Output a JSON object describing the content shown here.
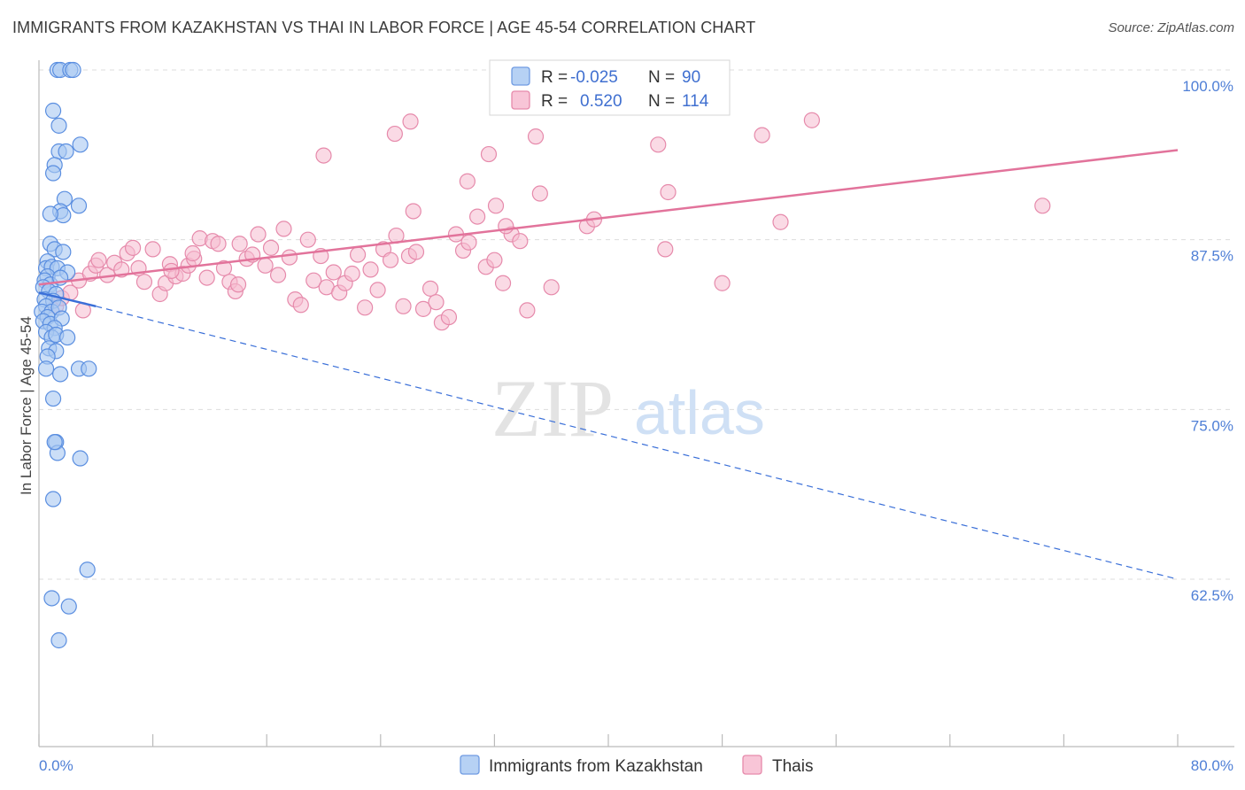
{
  "title": "IMMIGRANTS FROM KAZAKHSTAN VS THAI IN LABOR FORCE | AGE 45-54 CORRELATION CHART",
  "source": "Source: ZipAtlas.com",
  "watermark": {
    "zip": "ZIP",
    "atlas": "atlas"
  },
  "colors": {
    "blue_fill": "#a9c8f2",
    "blue_stroke": "#5a8ee0",
    "blue_line": "#3a6fd8",
    "pink_fill": "#f6bcd0",
    "pink_stroke": "#e68aab",
    "pink_line": "#e2739b",
    "tick_text": "#4f7fd6",
    "grid": "#dddddd"
  },
  "legend": {
    "rows": [
      {
        "r_label": "R =",
        "r_value": "-0.025",
        "n_label": "N =",
        "n_value": "90"
      },
      {
        "r_label": "R =",
        "r_value": "0.520",
        "n_label": "N =",
        "n_value": "114"
      }
    ]
  },
  "bottom_legend": {
    "series1": "Immigrants from Kazakhstan",
    "series2": "Thais"
  },
  "chart_data": {
    "type": "scatter",
    "title": "IMMIGRANTS FROM KAZAKHSTAN VS THAI IN LABOR FORCE | AGE 45-54 CORRELATION CHART",
    "ylabel": "In Labor Force | Age 45-54",
    "xlim": [
      0,
      80
    ],
    "ylim": [
      50,
      101
    ],
    "y_ticks": [
      62.5,
      75.0,
      87.5,
      100.0
    ],
    "y_tick_labels": [
      "62.5%",
      "75.0%",
      "87.5%",
      "100.0%"
    ],
    "x_tick_labels": [
      "0.0%",
      "80.0%"
    ],
    "grid": true,
    "legend_position": "top-center",
    "series": [
      {
        "name": "Immigrants from Kazakhstan",
        "r": -0.025,
        "n": 90,
        "trend_solid": [
          [
            0.0,
            83.6
          ],
          [
            4.0,
            82.6
          ]
        ],
        "trend_dashed": [
          [
            4.0,
            82.6
          ],
          [
            80.0,
            62.5
          ]
        ],
        "points": [
          [
            1.3,
            100.0
          ],
          [
            1.5,
            100.0
          ],
          [
            2.2,
            100.0
          ],
          [
            2.4,
            100.0
          ],
          [
            1.0,
            97.0
          ],
          [
            1.4,
            95.9
          ],
          [
            2.9,
            94.5
          ],
          [
            1.4,
            94.0
          ],
          [
            1.9,
            94.0
          ],
          [
            1.1,
            93.0
          ],
          [
            1.0,
            92.4
          ],
          [
            1.8,
            90.5
          ],
          [
            2.8,
            90.0
          ],
          [
            1.5,
            89.6
          ],
          [
            1.7,
            89.3
          ],
          [
            0.8,
            89.4
          ],
          [
            0.8,
            87.2
          ],
          [
            1.1,
            86.8
          ],
          [
            1.7,
            86.6
          ],
          [
            0.6,
            85.9
          ],
          [
            0.5,
            85.4
          ],
          [
            0.9,
            85.5
          ],
          [
            1.3,
            85.4
          ],
          [
            2.0,
            85.1
          ],
          [
            0.6,
            84.8
          ],
          [
            0.4,
            84.5
          ],
          [
            0.8,
            84.2
          ],
          [
            1.5,
            84.7
          ],
          [
            0.3,
            84.0
          ],
          [
            0.7,
            83.7
          ],
          [
            1.2,
            83.5
          ],
          [
            0.4,
            83.1
          ],
          [
            1.0,
            83.0
          ],
          [
            0.5,
            82.6
          ],
          [
            0.2,
            82.2
          ],
          [
            0.9,
            82.2
          ],
          [
            1.4,
            82.5
          ],
          [
            0.6,
            81.8
          ],
          [
            0.3,
            81.5
          ],
          [
            0.8,
            81.3
          ],
          [
            1.6,
            81.7
          ],
          [
            1.1,
            81.0
          ],
          [
            0.5,
            80.7
          ],
          [
            0.9,
            80.3
          ],
          [
            1.2,
            80.5
          ],
          [
            2.0,
            80.3
          ],
          [
            0.7,
            79.5
          ],
          [
            1.2,
            79.3
          ],
          [
            0.6,
            78.9
          ],
          [
            0.5,
            78.0
          ],
          [
            2.8,
            78.0
          ],
          [
            3.5,
            78.0
          ],
          [
            1.5,
            77.6
          ],
          [
            1.0,
            75.8
          ],
          [
            1.2,
            72.6
          ],
          [
            1.3,
            71.8
          ],
          [
            1.1,
            72.6
          ],
          [
            2.9,
            71.4
          ],
          [
            1.0,
            68.4
          ],
          [
            3.4,
            63.2
          ],
          [
            0.9,
            61.1
          ],
          [
            2.1,
            60.5
          ],
          [
            1.4,
            58.0
          ]
        ]
      },
      {
        "name": "Thais",
        "r": 0.52,
        "n": 114,
        "trend_solid": [
          [
            0.0,
            84.2
          ],
          [
            80.0,
            94.1
          ]
        ],
        "points": [
          [
            1.2,
            82.6
          ],
          [
            1.6,
            83.2
          ],
          [
            2.2,
            83.6
          ],
          [
            2.8,
            84.5
          ],
          [
            3.1,
            82.3
          ],
          [
            3.6,
            85.0
          ],
          [
            4.0,
            85.6
          ],
          [
            4.2,
            86.0
          ],
          [
            4.8,
            84.9
          ],
          [
            5.3,
            85.8
          ],
          [
            5.8,
            85.3
          ],
          [
            6.2,
            86.5
          ],
          [
            6.6,
            86.9
          ],
          [
            7.0,
            85.4
          ],
          [
            7.4,
            84.4
          ],
          [
            8.0,
            86.8
          ],
          [
            8.5,
            83.5
          ],
          [
            8.9,
            84.3
          ],
          [
            9.2,
            85.7
          ],
          [
            9.6,
            84.8
          ],
          [
            10.1,
            85.0
          ],
          [
            10.5,
            85.6
          ],
          [
            10.9,
            86.1
          ],
          [
            11.3,
            87.6
          ],
          [
            11.8,
            84.7
          ],
          [
            12.2,
            87.4
          ],
          [
            12.6,
            87.2
          ],
          [
            13.0,
            85.4
          ],
          [
            13.4,
            84.4
          ],
          [
            13.8,
            83.7
          ],
          [
            14.1,
            87.2
          ],
          [
            14.6,
            86.1
          ],
          [
            15.0,
            86.4
          ],
          [
            15.4,
            87.9
          ],
          [
            15.9,
            85.6
          ],
          [
            16.3,
            86.9
          ],
          [
            16.8,
            84.9
          ],
          [
            17.2,
            88.3
          ],
          [
            17.6,
            86.2
          ],
          [
            18.0,
            83.1
          ],
          [
            18.4,
            82.7
          ],
          [
            18.9,
            87.5
          ],
          [
            19.3,
            84.5
          ],
          [
            19.8,
            86.3
          ],
          [
            20.2,
            84.0
          ],
          [
            20.7,
            85.1
          ],
          [
            21.1,
            83.6
          ],
          [
            21.5,
            84.3
          ],
          [
            22.0,
            85.0
          ],
          [
            22.4,
            86.4
          ],
          [
            22.9,
            82.5
          ],
          [
            23.3,
            85.3
          ],
          [
            23.8,
            83.8
          ],
          [
            24.2,
            86.8
          ],
          [
            24.7,
            86.0
          ],
          [
            25.1,
            87.8
          ],
          [
            25.6,
            82.6
          ],
          [
            26.0,
            86.3
          ],
          [
            26.5,
            86.6
          ],
          [
            27.0,
            82.4
          ],
          [
            27.5,
            83.9
          ],
          [
            27.9,
            82.9
          ],
          [
            28.3,
            81.4
          ],
          [
            28.8,
            81.8
          ],
          [
            29.3,
            87.9
          ],
          [
            29.8,
            86.7
          ],
          [
            30.2,
            87.3
          ],
          [
            30.8,
            89.2
          ],
          [
            31.4,
            85.5
          ],
          [
            32.0,
            86.0
          ],
          [
            32.6,
            84.3
          ],
          [
            33.2,
            87.9
          ],
          [
            33.8,
            87.4
          ],
          [
            34.3,
            82.3
          ],
          [
            36.0,
            84.0
          ],
          [
            38.5,
            88.5
          ],
          [
            39.0,
            89.0
          ],
          [
            9.3,
            85.2
          ],
          [
            20.0,
            93.7
          ],
          [
            25.0,
            95.3
          ],
          [
            26.1,
            96.2
          ],
          [
            30.1,
            91.8
          ],
          [
            31.6,
            93.8
          ],
          [
            32.1,
            90.0
          ],
          [
            34.9,
            95.1
          ],
          [
            35.2,
            90.9
          ],
          [
            43.5,
            94.5
          ],
          [
            44.2,
            91.0
          ],
          [
            50.8,
            95.2
          ],
          [
            52.1,
            88.8
          ],
          [
            54.3,
            96.3
          ],
          [
            70.5,
            90.0
          ],
          [
            26.3,
            89.6
          ],
          [
            32.8,
            88.5
          ],
          [
            44.0,
            86.8
          ],
          [
            48.0,
            84.3
          ],
          [
            14.0,
            84.2
          ],
          [
            10.8,
            86.5
          ]
        ]
      }
    ]
  }
}
